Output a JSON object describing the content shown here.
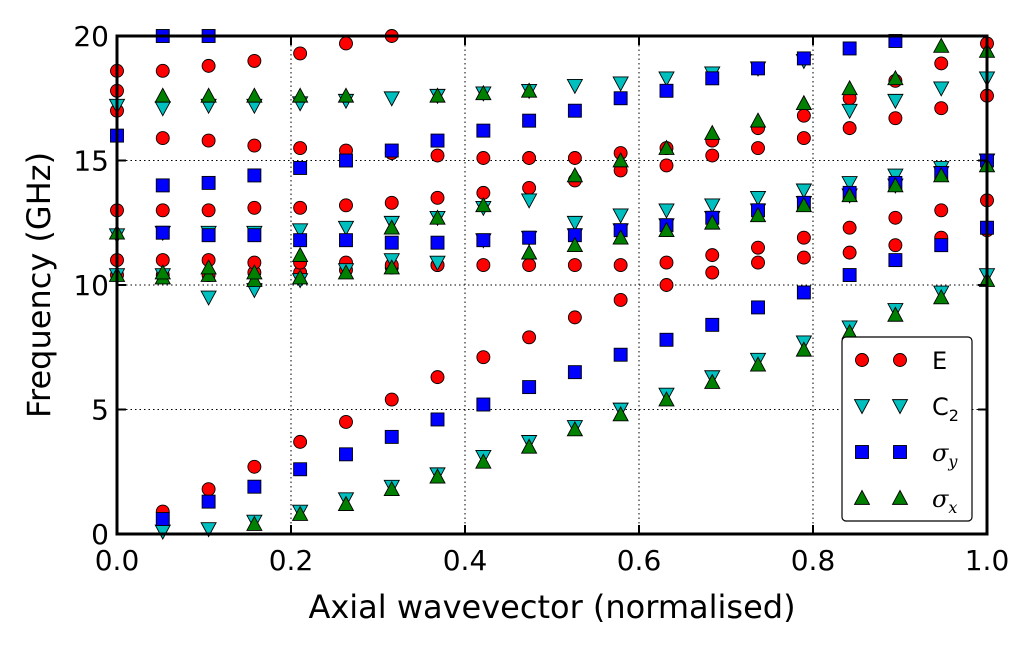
{
  "chart_data": {
    "type": "scatter",
    "xlabel": "Axial wavevector (normalised)",
    "ylabel": "Frequency (GHz)",
    "xlim": [
      0,
      1
    ],
    "ylim": [
      0,
      20
    ],
    "xticks": [
      "0.0",
      "0.2",
      "0.4",
      "0.6",
      "0.8",
      "1.0"
    ],
    "yticks": [
      "0",
      "5",
      "10",
      "15",
      "20"
    ],
    "grid": true,
    "legend_position": "lower-right",
    "series": [
      {
        "name": "E",
        "marker": "circle",
        "color": "#ff0000",
        "x": [
          0,
          0,
          0,
          0,
          0,
          0,
          0.0526,
          0.0526,
          0.0526,
          0.0526,
          0.0526,
          0.0526,
          0.1053,
          0.1053,
          0.1053,
          0.1053,
          0.1053,
          0.1053,
          0.1579,
          0.1579,
          0.1579,
          0.1579,
          0.1579,
          0.1579,
          0.2105,
          0.2105,
          0.2105,
          0.2105,
          0.2105,
          0.2105,
          0.2632,
          0.2632,
          0.2632,
          0.2632,
          0.2632,
          0.2632,
          0.3158,
          0.3158,
          0.3158,
          0.3158,
          0.3158,
          0.3158,
          0.3684,
          0.3684,
          0.3684,
          0.3684,
          0.3684,
          0.4211,
          0.4211,
          0.4211,
          0.4211,
          0.4737,
          0.4737,
          0.4737,
          0.4737,
          0.5263,
          0.5263,
          0.5263,
          0.5263,
          0.5789,
          0.5789,
          0.5789,
          0.5789,
          0.6316,
          0.6316,
          0.6316,
          0.6316,
          0.6842,
          0.6842,
          0.6842,
          0.6842,
          0.7368,
          0.7368,
          0.7368,
          0.7368,
          0.7895,
          0.7895,
          0.7895,
          0.7895,
          0.8421,
          0.8421,
          0.8421,
          0.8421,
          0.8947,
          0.8947,
          0.8947,
          0.8947,
          0.9474,
          0.9474,
          0.9474,
          0.9474,
          1,
          1,
          1,
          1
        ],
        "y": [
          10.4,
          11.0,
          13.0,
          17.0,
          17.8,
          18.6,
          0.9,
          10.4,
          11.0,
          13.0,
          15.9,
          18.6,
          1.8,
          10.4,
          11.0,
          13.0,
          15.8,
          18.8,
          2.7,
          10.5,
          10.9,
          13.1,
          15.6,
          19.0,
          3.7,
          10.5,
          10.9,
          13.1,
          15.5,
          19.3,
          4.5,
          10.6,
          10.9,
          13.2,
          15.4,
          19.7,
          5.4,
          10.7,
          10.8,
          13.3,
          15.3,
          20.0,
          6.3,
          10.8,
          10.8,
          13.5,
          15.2,
          7.1,
          10.8,
          13.7,
          15.1,
          7.9,
          10.8,
          13.9,
          15.1,
          8.7,
          10.8,
          14.2,
          15.1,
          9.4,
          10.8,
          14.6,
          15.3,
          10.0,
          10.9,
          14.8,
          15.5,
          10.5,
          11.2,
          15.2,
          15.8,
          10.9,
          11.5,
          15.5,
          16.3,
          11.1,
          11.9,
          15.9,
          16.8,
          11.3,
          12.3,
          16.3,
          17.5,
          11.6,
          12.7,
          16.7,
          18.2,
          11.9,
          13.0,
          17.1,
          18.9,
          12.2,
          13.4,
          17.6,
          19.7
        ]
      },
      {
        "name": "C2",
        "marker": "triangle-down",
        "color": "#00bfbf",
        "x": [
          0,
          0,
          0,
          0.0526,
          0.0526,
          0.0526,
          0.0526,
          0.1053,
          0.1053,
          0.1053,
          0.1053,
          0.1579,
          0.1579,
          0.1579,
          0.1579,
          0.2105,
          0.2105,
          0.2105,
          0.2105,
          0.2632,
          0.2632,
          0.2632,
          0.2632,
          0.3158,
          0.3158,
          0.3158,
          0.3158,
          0.3684,
          0.3684,
          0.3684,
          0.3684,
          0.4211,
          0.4211,
          0.4211,
          0.4211,
          0.4737,
          0.4737,
          0.4737,
          0.4737,
          0.5263,
          0.5263,
          0.5263,
          0.5263,
          0.5789,
          0.5789,
          0.5789,
          0.5789,
          0.6316,
          0.6316,
          0.6316,
          0.6316,
          0.6842,
          0.6842,
          0.6842,
          0.6842,
          0.7368,
          0.7368,
          0.7368,
          0.7368,
          0.7895,
          0.7895,
          0.7895,
          0.7895,
          0.8421,
          0.8421,
          0.8421,
          0.8421,
          0.8947,
          0.8947,
          0.8947,
          0.8947,
          0.9474,
          0.9474,
          0.9474,
          0.9474,
          1,
          1,
          1,
          1
        ],
        "y": [
          10.4,
          12.0,
          17.2,
          0.1,
          10.4,
          12.1,
          17.1,
          0.2,
          9.5,
          12.1,
          17.2,
          0.5,
          9.8,
          12.1,
          17.2,
          0.9,
          10.2,
          12.2,
          17.3,
          1.4,
          10.6,
          12.3,
          17.4,
          1.9,
          11.0,
          12.5,
          17.5,
          2.4,
          10.9,
          12.7,
          17.6,
          3.1,
          11.8,
          13.1,
          17.7,
          3.7,
          11.9,
          13.4,
          17.8,
          4.3,
          12.0,
          12.5,
          18.0,
          5.0,
          12.2,
          12.8,
          18.1,
          5.6,
          12.4,
          13.0,
          18.3,
          6.3,
          12.7,
          13.2,
          18.5,
          7.0,
          13.0,
          13.5,
          18.7,
          7.7,
          13.3,
          13.8,
          19.0,
          8.3,
          13.6,
          14.1,
          17.0,
          9.0,
          14.0,
          14.4,
          17.4,
          9.7,
          14.5,
          14.7,
          17.9,
          10.4,
          15.0,
          15.0,
          18.3
        ]
      },
      {
        "name": "σy",
        "marker": "square",
        "color": "#0000ff",
        "x": [
          0,
          0.0526,
          0.0526,
          0.0526,
          0.0526,
          0.1053,
          0.1053,
          0.1053,
          0.1053,
          0.1579,
          0.1579,
          0.1579,
          0.2105,
          0.2105,
          0.2105,
          0.2632,
          0.2632,
          0.2632,
          0.3158,
          0.3158,
          0.3158,
          0.3684,
          0.3684,
          0.3684,
          0.4211,
          0.4211,
          0.4211,
          0.4737,
          0.4737,
          0.4737,
          0.5263,
          0.5263,
          0.5263,
          0.5789,
          0.5789,
          0.5789,
          0.6316,
          0.6316,
          0.6316,
          0.6842,
          0.6842,
          0.6842,
          0.7368,
          0.7368,
          0.7368,
          0.7895,
          0.7895,
          0.7895,
          0.8421,
          0.8421,
          0.8421,
          0.8947,
          0.8947,
          0.8947,
          0.9474,
          0.9474,
          1,
          1
        ],
        "y": [
          16.0,
          0.6,
          12.1,
          14.0,
          20.0,
          1.3,
          12.0,
          14.1,
          20.0,
          1.9,
          12.0,
          14.4,
          2.6,
          11.8,
          14.7,
          3.2,
          11.8,
          15.0,
          3.9,
          11.7,
          15.4,
          4.6,
          11.7,
          15.8,
          5.2,
          11.8,
          16.2,
          5.9,
          11.9,
          16.6,
          6.5,
          12.0,
          17.0,
          7.2,
          12.2,
          17.5,
          7.8,
          12.4,
          17.8,
          8.4,
          12.7,
          18.3,
          9.1,
          13.0,
          18.7,
          9.7,
          13.3,
          19.1,
          10.4,
          13.7,
          19.5,
          11.0,
          14.1,
          19.8,
          11.6,
          14.5,
          12.3,
          15.0
        ]
      },
      {
        "name": "σx",
        "marker": "triangle-up",
        "color": "#008000",
        "x": [
          0,
          0,
          0.0526,
          0.0526,
          0.0526,
          0.1053,
          0.1053,
          0.1053,
          0.1579,
          0.1579,
          0.1579,
          0.1579,
          0.2105,
          0.2105,
          0.2105,
          0.2105,
          0.2632,
          0.2632,
          0.2632,
          0.3158,
          0.3158,
          0.3158,
          0.3684,
          0.3684,
          0.3684,
          0.4211,
          0.4211,
          0.4211,
          0.4737,
          0.4737,
          0.4737,
          0.5263,
          0.5263,
          0.5263,
          0.5789,
          0.5789,
          0.5789,
          0.6316,
          0.6316,
          0.6316,
          0.6842,
          0.6842,
          0.6842,
          0.7368,
          0.7368,
          0.7368,
          0.7895,
          0.7895,
          0.7895,
          0.8421,
          0.8421,
          0.8421,
          0.8947,
          0.8947,
          0.8947,
          0.9474,
          0.9474,
          0.9474,
          1,
          1,
          1
        ],
        "y": [
          12.1,
          10.4,
          10.3,
          10.5,
          17.6,
          10.4,
          10.7,
          17.6,
          0.4,
          10.2,
          10.5,
          17.6,
          0.8,
          10.3,
          11.2,
          17.6,
          1.2,
          10.5,
          17.6,
          1.8,
          10.7,
          12.3,
          2.3,
          12.7,
          17.6,
          2.9,
          13.2,
          17.7,
          3.5,
          11.3,
          17.8,
          4.2,
          11.6,
          14.4,
          4.8,
          11.9,
          15.0,
          5.4,
          12.2,
          15.5,
          6.1,
          12.5,
          16.1,
          6.8,
          12.8,
          16.6,
          7.4,
          13.2,
          17.3,
          8.1,
          13.6,
          17.9,
          8.8,
          14.0,
          18.3,
          9.5,
          14.4,
          19.6,
          10.2,
          14.8,
          19.4
        ]
      }
    ]
  }
}
